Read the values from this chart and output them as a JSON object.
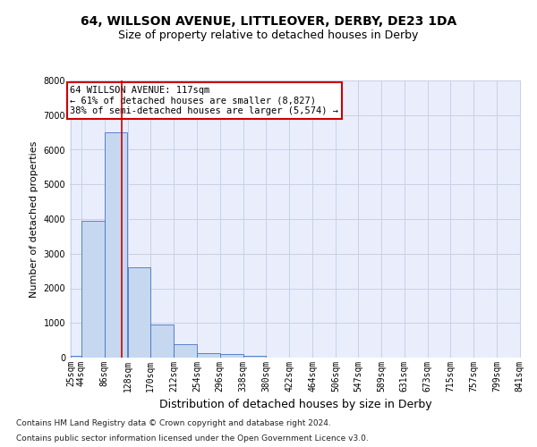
{
  "title": "64, WILLSON AVENUE, LITTLEOVER, DERBY, DE23 1DA",
  "subtitle": "Size of property relative to detached houses in Derby",
  "xlabel": "Distribution of detached houses by size in Derby",
  "ylabel": "Number of detached properties",
  "footnote1": "Contains HM Land Registry data © Crown copyright and database right 2024.",
  "footnote2": "Contains public sector information licensed under the Open Government Licence v3.0.",
  "annotation_line1": "64 WILLSON AVENUE: 117sqm",
  "annotation_line2": "← 61% of detached houses are smaller (8,827)",
  "annotation_line3": "38% of semi-detached houses are larger (5,574) →",
  "property_size": 117,
  "bin_edges": [
    25,
    44,
    86,
    128,
    170,
    212,
    254,
    296,
    338,
    380,
    422,
    464,
    506,
    547,
    589,
    631,
    673,
    715,
    757,
    799,
    841
  ],
  "bar_heights": [
    50,
    3950,
    6500,
    2600,
    950,
    400,
    130,
    100,
    50,
    0,
    0,
    0,
    0,
    0,
    0,
    0,
    0,
    0,
    0,
    0
  ],
  "bar_color": "#c5d8f0",
  "bar_edge_color": "#4472c4",
  "vline_color": "#cc0000",
  "vline_x": 117,
  "ylim": [
    0,
    8000
  ],
  "yticks": [
    0,
    1000,
    2000,
    3000,
    4000,
    5000,
    6000,
    7000,
    8000
  ],
  "grid_color": "#c8d0e8",
  "background_color": "#eaeefc",
  "annotation_box_color": "#cc0000",
  "title_fontsize": 10,
  "subtitle_fontsize": 9,
  "xlabel_fontsize": 9,
  "ylabel_fontsize": 8,
  "tick_fontsize": 7,
  "annotation_fontsize": 7.5,
  "footnote_fontsize": 6.5
}
